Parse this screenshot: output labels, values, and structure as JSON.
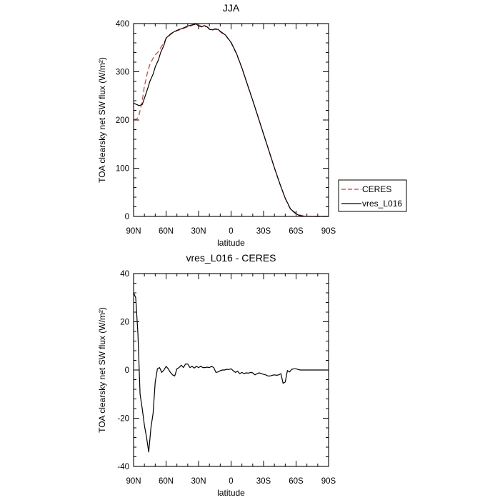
{
  "chart_data": [
    {
      "type": "line",
      "title": "JJA",
      "xlabel": "latitude",
      "ylabel": "TOA clearsky net SW flux (W/m²)",
      "xlim": [
        -90,
        90
      ],
      "ylim": [
        0,
        400
      ],
      "x_ticks": [
        -90,
        -60,
        -30,
        0,
        30,
        60,
        90
      ],
      "x_tick_labels": [
        "90N",
        "60N",
        "30N",
        "0",
        "30S",
        "60S",
        "90S"
      ],
      "y_ticks": [
        0,
        100,
        200,
        300,
        400
      ],
      "y_tick_labels": [
        "0",
        "100",
        "200",
        "300",
        "400"
      ],
      "legend_position": "right",
      "series": [
        {
          "name": "CERES",
          "color": "#e8332f",
          "dash": "dashed",
          "x": [
            -90,
            -87,
            -85,
            -82,
            -80,
            -77,
            -75,
            -72,
            -70,
            -67,
            -65,
            -62,
            -60,
            -55,
            -50,
            -45,
            -40,
            -35,
            -32,
            -30,
            -27,
            -25,
            -22,
            -20,
            -17,
            -15,
            -12,
            -10,
            -5,
            0,
            5,
            10,
            15,
            20,
            25,
            30,
            35,
            40,
            45,
            50,
            55,
            60,
            62,
            65,
            67,
            70,
            75,
            80,
            85,
            90
          ],
          "values": [
            201,
            202,
            210,
            240,
            270,
            300,
            315,
            328,
            335,
            342,
            350,
            360,
            369,
            379,
            385,
            389,
            393,
            397,
            399,
            397,
            394,
            394,
            393,
            390,
            387,
            388,
            387,
            383,
            375,
            360,
            337,
            307,
            273,
            240,
            205,
            170,
            135,
            100,
            67,
            37,
            14,
            5,
            4,
            2,
            1,
            0.5,
            0,
            0,
            0,
            0
          ]
        },
        {
          "name": "vres_L016",
          "color": "#000000",
          "dash": "solid",
          "x": [
            -90,
            -87,
            -85,
            -82,
            -80,
            -77,
            -75,
            -72,
            -70,
            -67,
            -65,
            -62,
            -60,
            -55,
            -50,
            -45,
            -40,
            -35,
            -32,
            -30,
            -27,
            -25,
            -22,
            -20,
            -17,
            -15,
            -12,
            -10,
            -5,
            0,
            5,
            10,
            15,
            20,
            25,
            30,
            35,
            40,
            45,
            50,
            55,
            60,
            62,
            65,
            67,
            70,
            75,
            80,
            85,
            90
          ],
          "values": [
            235,
            232,
            230,
            232,
            245,
            265,
            280,
            295,
            310,
            325,
            340,
            355,
            370,
            380,
            386,
            390,
            395,
            398,
            399,
            395,
            393,
            396,
            393,
            388,
            387,
            389,
            388,
            384,
            376,
            361,
            338,
            308,
            274,
            241,
            206,
            171,
            136,
            101,
            68,
            38,
            15,
            6,
            3,
            1,
            0.5,
            0.2,
            0,
            0,
            0,
            0
          ]
        }
      ]
    },
    {
      "type": "line",
      "title": "vres_L016 - CERES",
      "xlabel": "latitude",
      "ylabel": "TOA clearsky net SW flux (W/m²)",
      "xlim": [
        -90,
        90
      ],
      "ylim": [
        -40,
        40
      ],
      "x_ticks": [
        -90,
        -60,
        -30,
        0,
        30,
        60,
        90
      ],
      "x_tick_labels": [
        "90N",
        "60N",
        "30N",
        "0",
        "30S",
        "60S",
        "90S"
      ],
      "y_ticks": [
        -40,
        -20,
        0,
        20,
        40
      ],
      "y_tick_labels": [
        "-40",
        "-20",
        "0",
        "20",
        "40"
      ],
      "series": [
        {
          "color": "#000000",
          "dash": "solid",
          "x": [
            -90,
            -88,
            -86,
            -84,
            -82,
            -80,
            -78,
            -76,
            -74,
            -72,
            -70,
            -68,
            -66,
            -64,
            -62,
            -60,
            -58,
            -56,
            -54,
            -52,
            -50,
            -48,
            -46,
            -44,
            -42,
            -40,
            -38,
            -36,
            -34,
            -32,
            -30,
            -28,
            -26,
            -24,
            -22,
            -20,
            -18,
            -16,
            -14,
            -12,
            -10,
            -8,
            -6,
            -4,
            -2,
            0,
            2,
            4,
            6,
            8,
            10,
            12,
            14,
            16,
            18,
            20,
            22,
            24,
            26,
            28,
            30,
            32,
            34,
            36,
            38,
            40,
            42,
            44,
            46,
            48,
            50,
            52,
            54,
            56,
            58,
            60,
            62,
            64,
            66,
            68,
            70,
            72,
            74,
            76,
            78,
            80,
            82,
            84,
            86,
            88,
            90
          ],
          "values": [
            32,
            30,
            15,
            -10,
            -16,
            -23,
            -28,
            -34,
            -24,
            -18,
            -5,
            0.5,
            1,
            -1,
            0,
            1.5,
            0.5,
            -1,
            -2,
            -2.5,
            0.5,
            1,
            2,
            1,
            2.5,
            2.5,
            1,
            1.5,
            0.8,
            1.5,
            1,
            1.5,
            1,
            1,
            1.2,
            1,
            1.5,
            1,
            -1,
            -0.8,
            -0.3,
            0,
            0,
            0.3,
            0.2,
            0.5,
            -0.3,
            -1,
            -0.5,
            -1.5,
            -1,
            -1.5,
            -1.2,
            -1.3,
            -1,
            -1.2,
            -2,
            -1.5,
            -1.2,
            -1.5,
            -1.8,
            -2,
            -2.5,
            -2.5,
            -2.2,
            -2,
            -2.2,
            -2,
            -1.5,
            -5.5,
            -5,
            -0.2,
            -0.8,
            0.3,
            0.5,
            0.5,
            0.2,
            0,
            0,
            0,
            0,
            0,
            0,
            0,
            0,
            0,
            0,
            0,
            0,
            0,
            0
          ]
        }
      ]
    }
  ]
}
